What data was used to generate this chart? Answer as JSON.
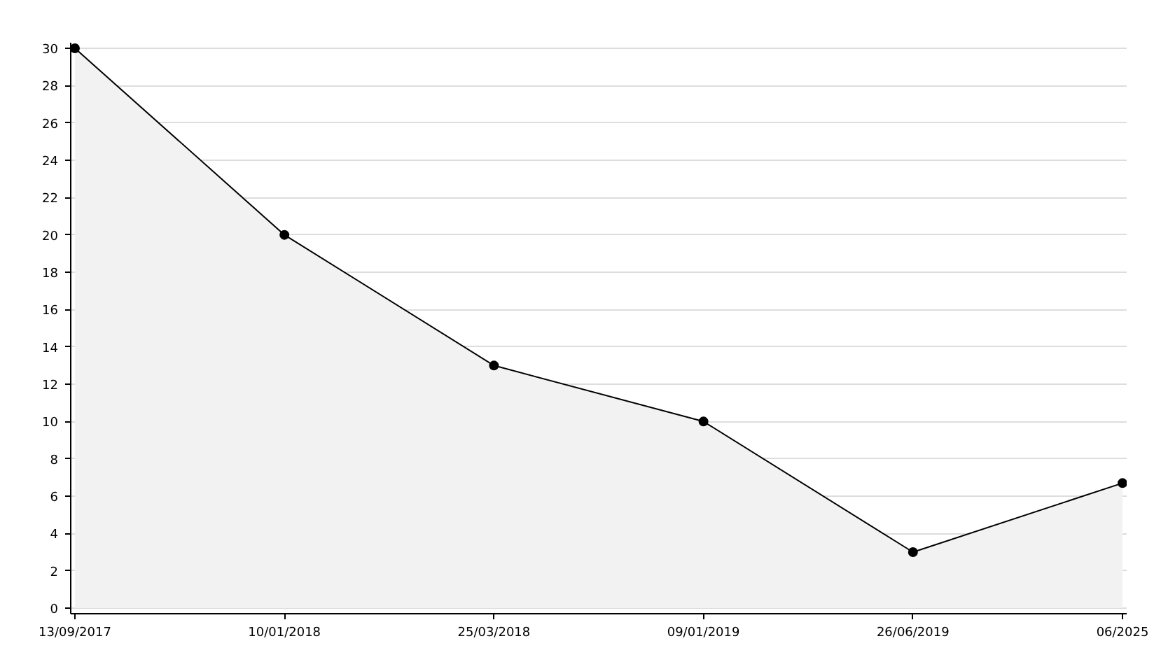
{
  "chart_data": {
    "type": "area",
    "categories": [
      "13/09/2017",
      "10/01/2018",
      "25/03/2018",
      "09/01/2019",
      "26/06/2019",
      "06/2025"
    ],
    "series": [
      {
        "color": "#000000",
        "values": [
          30,
          20,
          13,
          10,
          3,
          6.7
        ]
      }
    ],
    "ylim": [
      0,
      30
    ],
    "yticks": [
      0,
      2,
      4,
      6,
      8,
      10,
      12,
      14,
      16,
      18,
      20,
      22,
      24,
      26,
      28,
      30
    ],
    "grid": "y",
    "marker": "circle",
    "line_style": "solid"
  }
}
